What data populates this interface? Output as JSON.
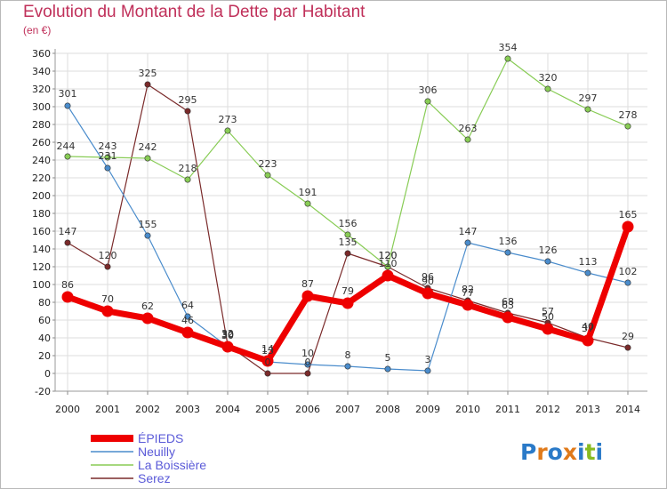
{
  "chart_data": {
    "type": "line",
    "title": "Evolution du Montant de la Dette par Habitant",
    "subtitle": "(en €)",
    "xlabel": "",
    "ylabel": "",
    "ylim": [
      -20,
      360
    ],
    "yticks": [
      -20,
      0,
      20,
      40,
      60,
      80,
      100,
      120,
      140,
      160,
      180,
      200,
      220,
      240,
      260,
      280,
      300,
      320,
      340,
      360
    ],
    "x": [
      "2000",
      "2001",
      "2002",
      "2003",
      "2004",
      "2005",
      "2006",
      "2007",
      "2008",
      "2009",
      "2010",
      "2011",
      "2012",
      "2013",
      "2014"
    ],
    "grid": true,
    "legend": "bottom-left",
    "series": [
      {
        "name": "Serez",
        "color": "#7a2a2a",
        "values": [
          147,
          120,
          325,
          295,
          32,
          0,
          0,
          135,
          120,
          96,
          82,
          68,
          57,
          40,
          29
        ]
      },
      {
        "name": "La Boissière",
        "color": "#88cc55",
        "values": [
          244,
          243,
          242,
          218,
          273,
          223,
          191,
          156,
          120,
          306,
          263,
          354,
          320,
          297,
          278
        ]
      },
      {
        "name": "Neuilly",
        "color": "#4a8ccc",
        "values": [
          301,
          231,
          155,
          64,
          30,
          13,
          10,
          8,
          5,
          3,
          147,
          136,
          126,
          113,
          102
        ]
      },
      {
        "name": "ÉPIEDS",
        "color": "#ee0000",
        "values": [
          86,
          70,
          62,
          46,
          30,
          14,
          87,
          79,
          110,
          90,
          77,
          63,
          50,
          37,
          165
        ]
      }
    ]
  },
  "logo": {
    "text": "Proxiti"
  }
}
